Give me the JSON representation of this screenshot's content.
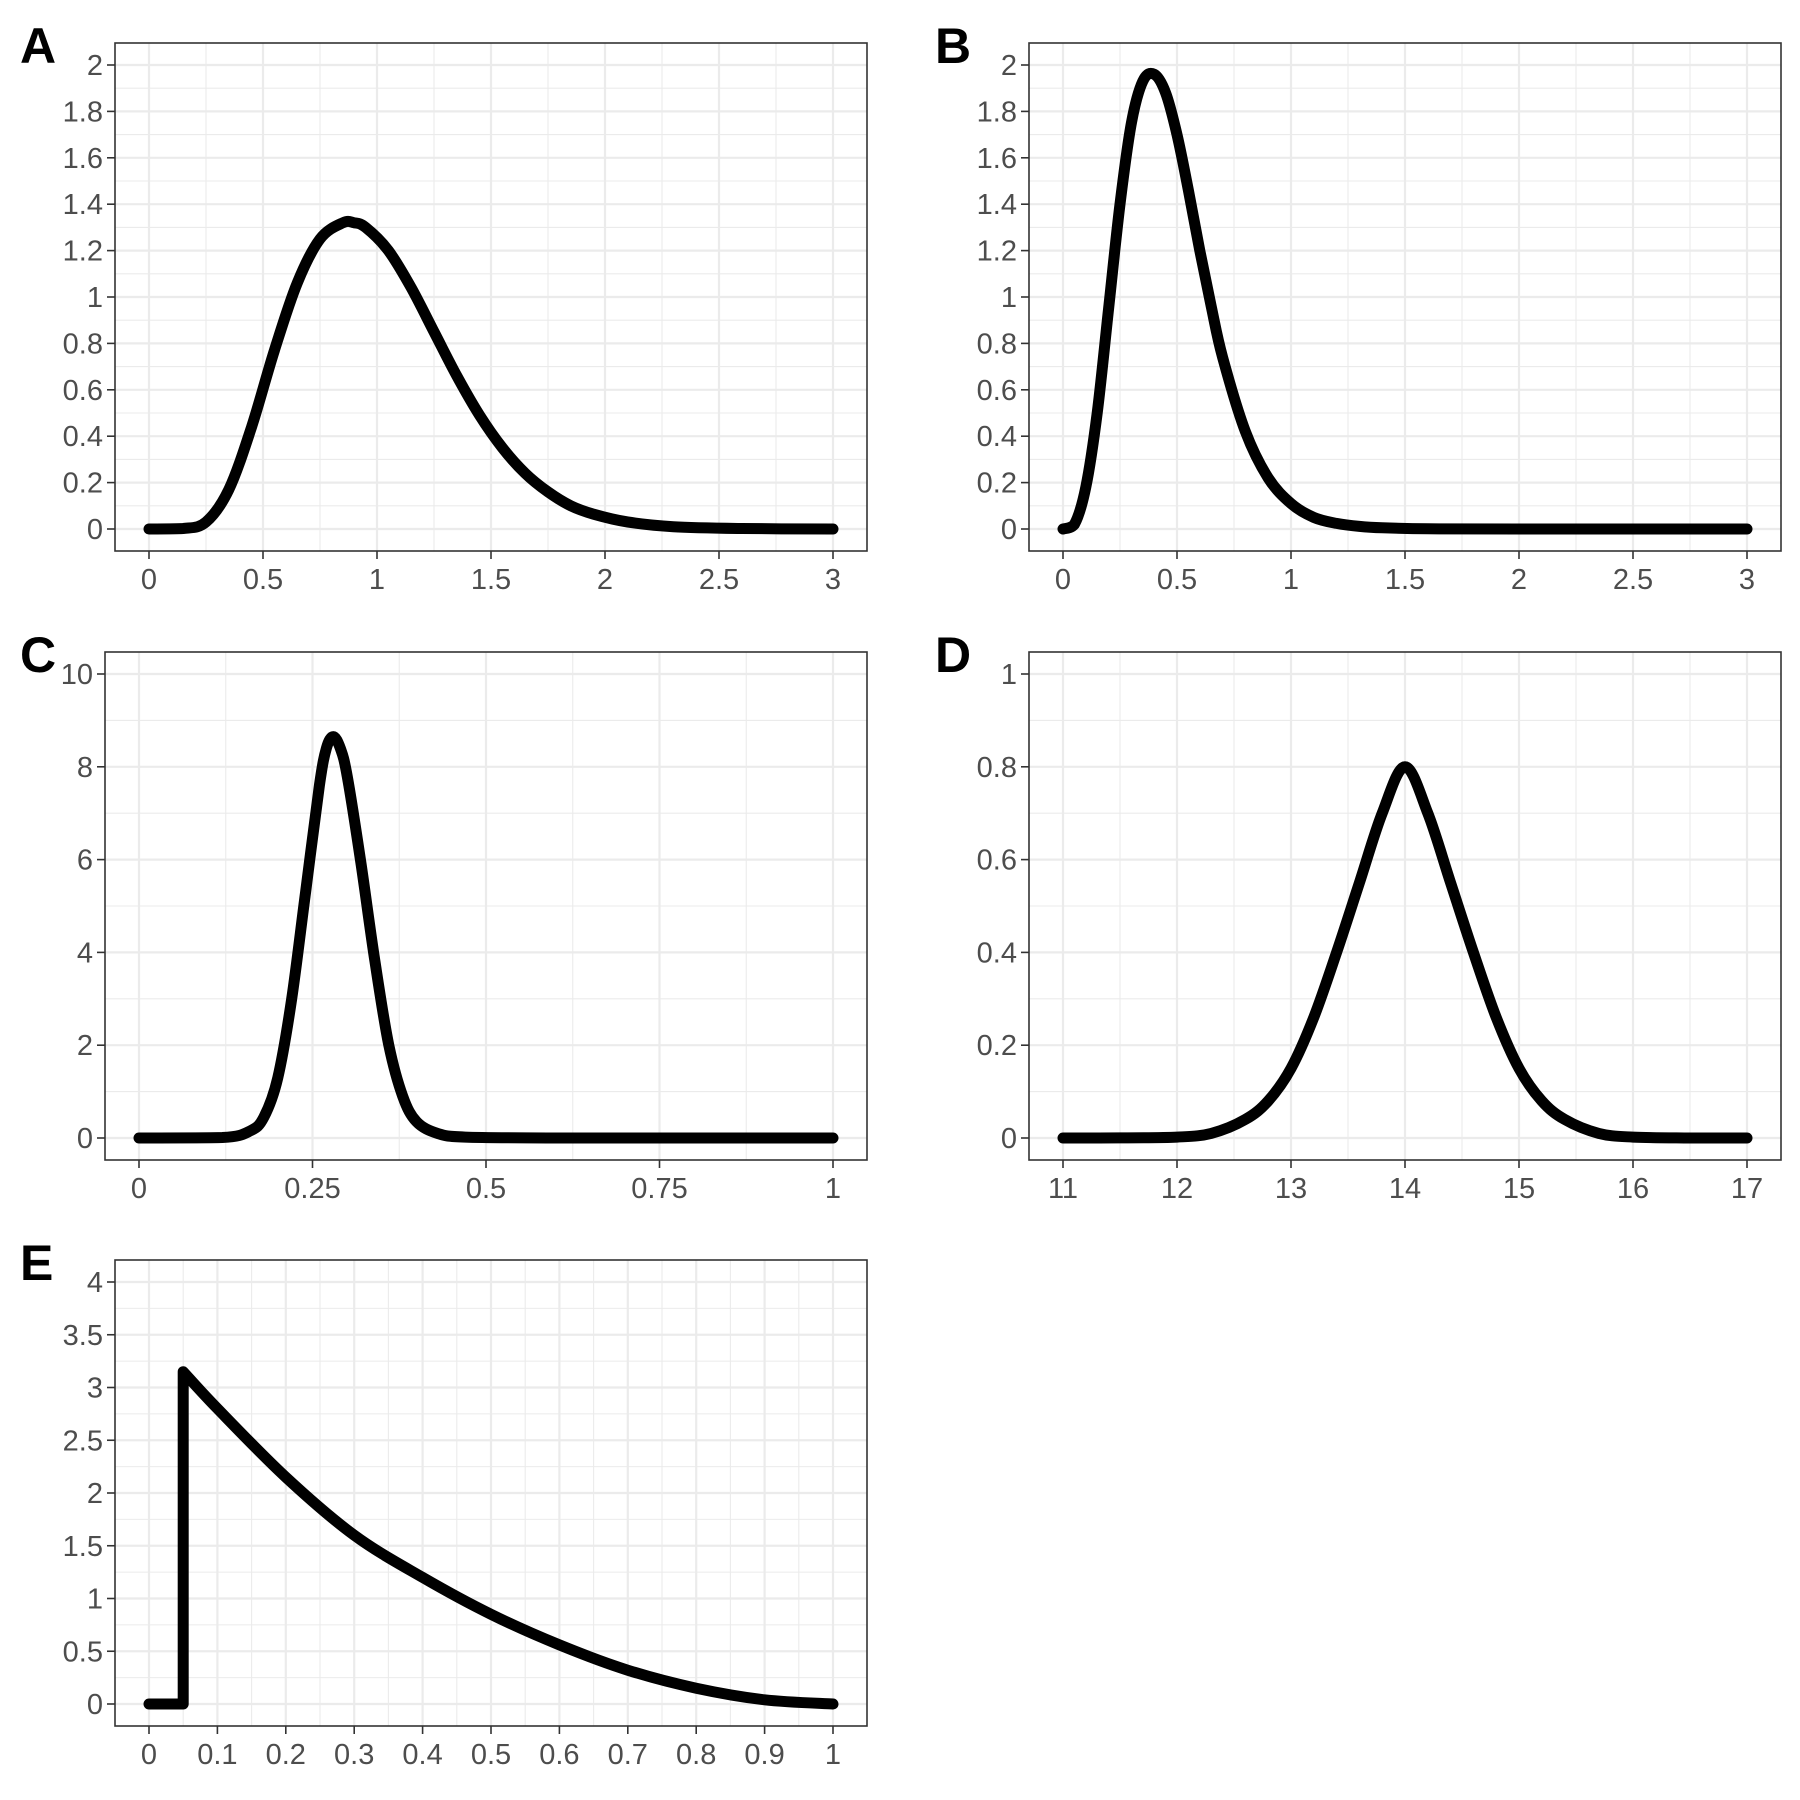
{
  "colors": {
    "curve": "#000000",
    "grid": "#ebebeb",
    "frame": "#333333",
    "tick_text": "#4d4d4d"
  },
  "chart_data": [
    {
      "panel_label": "A",
      "type": "line",
      "grid": true,
      "xlim": [
        0,
        3
      ],
      "ylim": [
        0,
        2
      ],
      "x_ticks": [
        0,
        0.5,
        1,
        1.5,
        2,
        2.5,
        3
      ],
      "x_tick_labels": [
        "0",
        "0.5",
        "1",
        "1.5",
        "2",
        "2.5",
        "3"
      ],
      "y_ticks": [
        0,
        0.2,
        0.4,
        0.6,
        0.8,
        1,
        1.2,
        1.4,
        1.6,
        1.8,
        2
      ],
      "y_tick_labels": [
        "0",
        "0.2",
        "0.4",
        "0.6",
        "0.8",
        "1",
        "1.2",
        "1.4",
        "1.6",
        "1.8",
        "2"
      ],
      "x": [
        0,
        0.15,
        0.25,
        0.35,
        0.45,
        0.55,
        0.65,
        0.75,
        0.85,
        0.9,
        0.95,
        1.05,
        1.15,
        1.25,
        1.35,
        1.45,
        1.55,
        1.65,
        1.75,
        1.85,
        1.95,
        2.1,
        2.3,
        2.6,
        3.0
      ],
      "values": [
        0,
        0.002,
        0.03,
        0.17,
        0.44,
        0.77,
        1.06,
        1.25,
        1.32,
        1.32,
        1.3,
        1.2,
        1.04,
        0.85,
        0.66,
        0.49,
        0.35,
        0.24,
        0.16,
        0.1,
        0.064,
        0.03,
        0.01,
        0.002,
        0
      ]
    },
    {
      "panel_label": "B",
      "type": "line",
      "grid": true,
      "xlim": [
        0,
        3
      ],
      "ylim": [
        0,
        2
      ],
      "x_ticks": [
        0,
        0.5,
        1,
        1.5,
        2,
        2.5,
        3
      ],
      "x_tick_labels": [
        "0",
        "0.5",
        "1",
        "1.5",
        "2",
        "2.5",
        "3"
      ],
      "y_ticks": [
        0,
        0.2,
        0.4,
        0.6,
        0.8,
        1,
        1.2,
        1.4,
        1.6,
        1.8,
        2
      ],
      "y_tick_labels": [
        "0",
        "0.2",
        "0.4",
        "0.6",
        "0.8",
        "1",
        "1.2",
        "1.4",
        "1.6",
        "1.8",
        "2"
      ],
      "x": [
        0,
        0.05,
        0.1,
        0.15,
        0.2,
        0.25,
        0.3,
        0.35,
        0.4,
        0.45,
        0.5,
        0.55,
        0.6,
        0.65,
        0.7,
        0.8,
        0.9,
        1.0,
        1.1,
        1.2,
        1.3,
        1.4,
        1.6,
        2.0,
        3.0
      ],
      "values": [
        0,
        0.02,
        0.18,
        0.5,
        0.95,
        1.4,
        1.75,
        1.93,
        1.96,
        1.88,
        1.7,
        1.46,
        1.2,
        0.96,
        0.74,
        0.42,
        0.22,
        0.11,
        0.05,
        0.024,
        0.011,
        0.005,
        0.001,
        0,
        0
      ]
    },
    {
      "panel_label": "C",
      "type": "line",
      "grid": true,
      "xlim": [
        0,
        1
      ],
      "ylim": [
        0,
        10
      ],
      "x_ticks": [
        0,
        0.25,
        0.5,
        0.75,
        1
      ],
      "x_tick_labels": [
        "0",
        "0.25",
        "0.5",
        "0.75",
        "1"
      ],
      "y_ticks": [
        0,
        2,
        4,
        6,
        8,
        10
      ],
      "y_tick_labels": [
        "0",
        "2",
        "4",
        "6",
        "8",
        "10"
      ],
      "x": [
        0,
        0.12,
        0.16,
        0.18,
        0.2,
        0.22,
        0.24,
        0.26,
        0.27,
        0.28,
        0.29,
        0.3,
        0.32,
        0.34,
        0.36,
        0.38,
        0.4,
        0.43,
        0.47,
        0.6,
        1.0
      ],
      "values": [
        0,
        0.01,
        0.15,
        0.45,
        1.3,
        3.0,
        5.3,
        7.6,
        8.4,
        8.65,
        8.4,
        7.8,
        5.9,
        3.8,
        2.0,
        0.9,
        0.35,
        0.1,
        0.02,
        0,
        0
      ]
    },
    {
      "panel_label": "D",
      "type": "line",
      "grid": true,
      "xlim": [
        11,
        17
      ],
      "ylim": [
        0,
        1
      ],
      "x_ticks": [
        11,
        12,
        13,
        14,
        15,
        16,
        17
      ],
      "x_tick_labels": [
        "11",
        "12",
        "13",
        "14",
        "15",
        "16",
        "17"
      ],
      "y_ticks": [
        0,
        0.2,
        0.4,
        0.6,
        0.8,
        1
      ],
      "y_tick_labels": [
        "0",
        "0.2",
        "0.4",
        "0.6",
        "0.8",
        "1"
      ],
      "x": [
        11,
        11.5,
        12,
        12.3,
        12.6,
        12.8,
        13,
        13.2,
        13.4,
        13.6,
        13.8,
        14,
        14.2,
        14.4,
        14.6,
        14.8,
        15,
        15.2,
        15.4,
        15.7,
        16,
        16.5,
        17
      ],
      "values": [
        0,
        0.0002,
        0.002,
        0.01,
        0.04,
        0.08,
        0.15,
        0.26,
        0.4,
        0.55,
        0.7,
        0.8,
        0.7,
        0.55,
        0.4,
        0.26,
        0.15,
        0.08,
        0.04,
        0.01,
        0.002,
        0,
        0
      ]
    },
    {
      "panel_label": "E",
      "type": "line",
      "grid": true,
      "xlim": [
        0,
        1
      ],
      "ylim": [
        0,
        4
      ],
      "x_ticks": [
        0,
        0.1,
        0.2,
        0.3,
        0.4,
        0.5,
        0.6,
        0.7,
        0.8,
        0.9,
        1
      ],
      "x_tick_labels": [
        "0",
        "0.1",
        "0.2",
        "0.3",
        "0.4",
        "0.5",
        "0.6",
        "0.7",
        "0.8",
        "0.9",
        "1"
      ],
      "y_ticks": [
        0,
        0.5,
        1,
        1.5,
        2,
        2.5,
        3,
        3.5,
        4
      ],
      "y_tick_labels": [
        "0",
        "0.5",
        "1",
        "1.5",
        "2",
        "2.5",
        "3",
        "3.5",
        "4"
      ],
      "x": [
        0,
        0.05,
        0.05,
        0.1,
        0.2,
        0.3,
        0.4,
        0.5,
        0.6,
        0.7,
        0.8,
        0.9,
        1.0
      ],
      "values": [
        0,
        0,
        3.15,
        2.8,
        2.15,
        1.6,
        1.2,
        0.85,
        0.56,
        0.32,
        0.15,
        0.04,
        0
      ]
    }
  ]
}
